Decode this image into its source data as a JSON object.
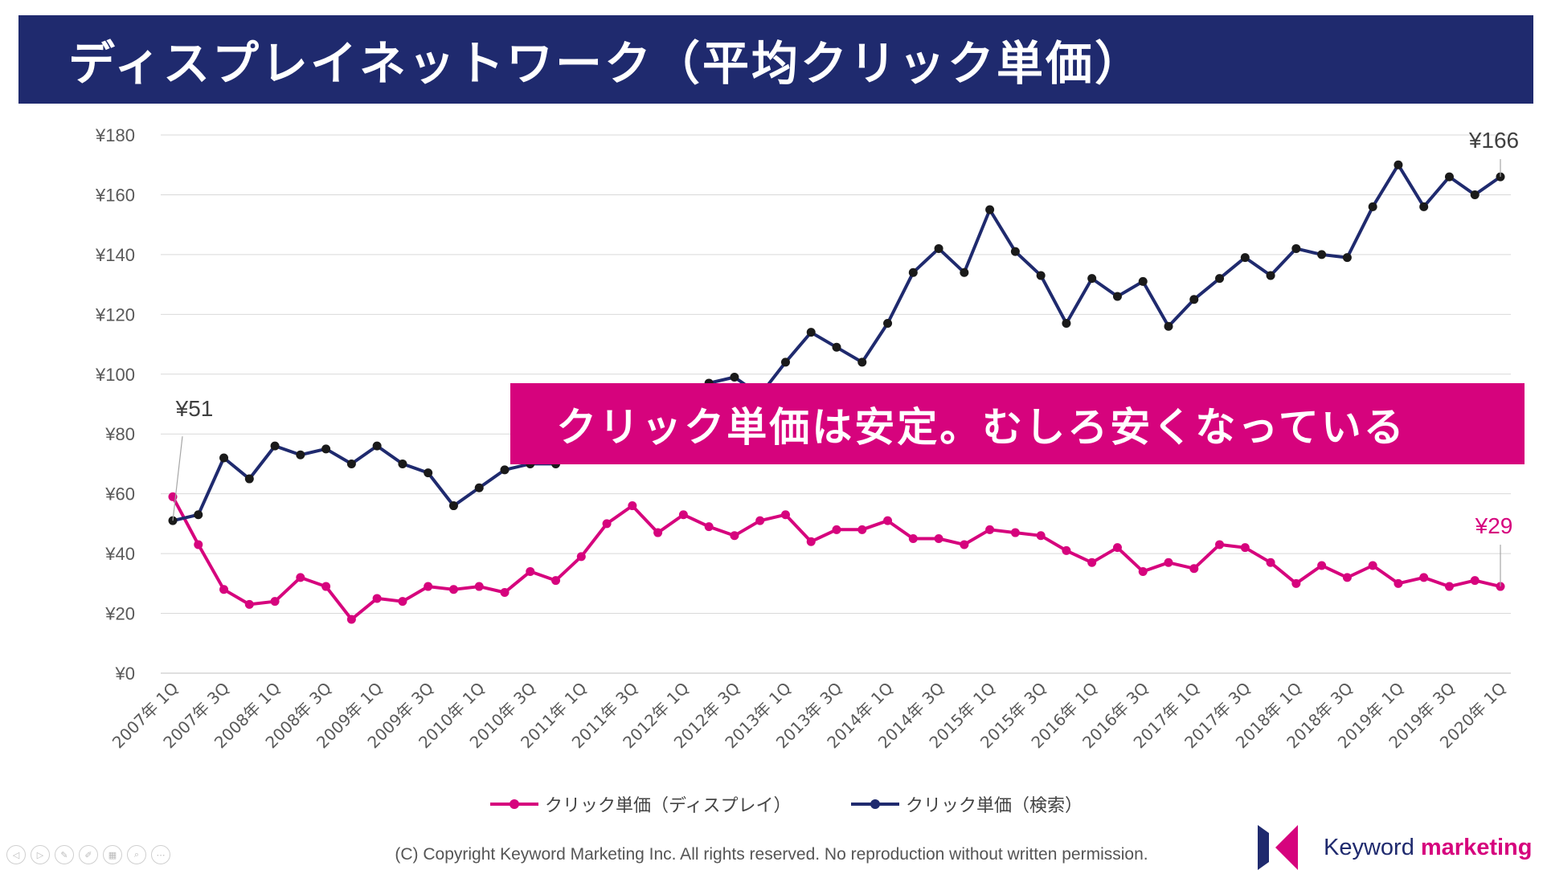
{
  "title": "ディスプレイネットワーク（平均クリック単価）",
  "banner": "クリック単価は安定。むしろ安くなっている",
  "footer": "(C) Copyright Keyword Marketing Inc. All rights reserved. No reproduction without written permission.",
  "logo": {
    "word1": "Keyword",
    "word2": "marketing"
  },
  "colors": {
    "navy": "#1f2a6e",
    "magenta": "#d6037d",
    "title_bg": "#1f2a6e",
    "banner_bg": "#d6037d"
  },
  "nav_icons": [
    "prev-icon",
    "play-icon",
    "edit-icon",
    "pen-icon",
    "slides-icon",
    "zoom-icon",
    "more-icon"
  ],
  "chart_data": {
    "type": "line",
    "title": "",
    "xlabel": "",
    "ylabel": "",
    "ylim": [
      0,
      180
    ],
    "yticks": [
      "¥0",
      "¥20",
      "¥40",
      "¥60",
      "¥80",
      "¥100",
      "¥120",
      "¥140",
      "¥160",
      "¥180"
    ],
    "grid": true,
    "legend_position": "bottom",
    "categories": [
      "2007年 1Q",
      "2007年 2Q",
      "2007年 3Q",
      "2007年 4Q",
      "2008年 1Q",
      "2008年 2Q",
      "2008年 3Q",
      "2008年 4Q",
      "2009年 1Q",
      "2009年 2Q",
      "2009年 3Q",
      "2009年 4Q",
      "2010年 1Q",
      "2010年 2Q",
      "2010年 3Q",
      "2010年 4Q",
      "2011年 1Q",
      "2011年 2Q",
      "2011年 3Q",
      "2011年 4Q",
      "2012年 1Q",
      "2012年 2Q",
      "2012年 3Q",
      "2012年 4Q",
      "2013年 1Q",
      "2013年 2Q",
      "2013年 3Q",
      "2013年 4Q",
      "2014年 1Q",
      "2014年 2Q",
      "2014年 3Q",
      "2014年 4Q",
      "2015年 1Q",
      "2015年 2Q",
      "2015年 3Q",
      "2015年 4Q",
      "2016年 1Q",
      "2016年 2Q",
      "2016年 3Q",
      "2016年 4Q",
      "2017年 1Q",
      "2017年 2Q",
      "2017年 3Q",
      "2017年 4Q",
      "2018年 1Q",
      "2018年 2Q",
      "2018年 3Q",
      "2018年 4Q",
      "2019年 1Q",
      "2019年 2Q",
      "2019年 3Q",
      "2019年 4Q",
      "2020年 1Q"
    ],
    "xtick_labels": [
      "2007年 1Q",
      "2007年 3Q",
      "2008年 1Q",
      "2008年 3Q",
      "2009年 1Q",
      "2009年 3Q",
      "2010年 1Q",
      "2010年 3Q",
      "2011年 1Q",
      "2011年 3Q",
      "2012年 1Q",
      "2012年 3Q",
      "2013年 1Q",
      "2013年 3Q",
      "2014年 1Q",
      "2014年 3Q",
      "2015年 1Q",
      "2015年 3Q",
      "2016年 1Q",
      "2016年 3Q",
      "2017年 1Q",
      "2017年 3Q",
      "2018年 1Q",
      "2018年 3Q",
      "2019年 1Q",
      "2019年 3Q",
      "2020年 1Q"
    ],
    "series": [
      {
        "name": "クリック単価（ディスプレイ）",
        "color": "#d6037d",
        "values": [
          59,
          43,
          28,
          23,
          24,
          32,
          29,
          18,
          25,
          24,
          29,
          28,
          29,
          27,
          34,
          31,
          39,
          50,
          56,
          47,
          53,
          49,
          46,
          51,
          53,
          44,
          48,
          48,
          51,
          45,
          45,
          43,
          48,
          47,
          46,
          41,
          37,
          42,
          34,
          37,
          35,
          43,
          42,
          37,
          30,
          36,
          32,
          36,
          30,
          32,
          29,
          31,
          29
        ]
      },
      {
        "name": "クリック単価（検索）",
        "color": "#1f2a6e",
        "values": [
          51,
          53,
          72,
          65,
          76,
          73,
          75,
          70,
          76,
          70,
          67,
          56,
          62,
          68,
          70,
          70,
          77,
          82,
          85,
          85,
          90,
          97,
          99,
          93,
          104,
          114,
          109,
          104,
          117,
          134,
          142,
          134,
          155,
          141,
          133,
          117,
          132,
          126,
          131,
          116,
          125,
          132,
          139,
          133,
          142,
          140,
          139,
          156,
          170,
          156,
          166,
          160,
          166
        ]
      }
    ],
    "annotations": [
      {
        "text": "¥51",
        "series": 1,
        "index": 0
      },
      {
        "text": "¥166",
        "series": 1,
        "index": 52
      },
      {
        "text": "¥29",
        "series": 0,
        "index": 52
      }
    ]
  }
}
